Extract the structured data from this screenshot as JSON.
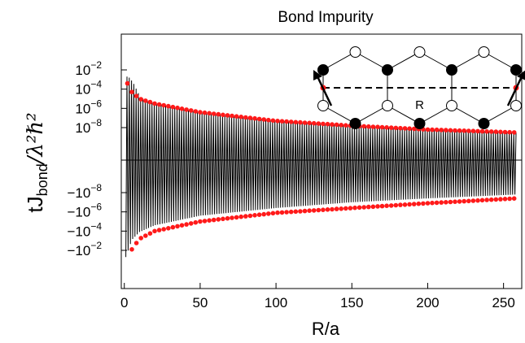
{
  "chart_data": {
    "type": "scatter",
    "title": "Bond Impurity",
    "xlabel": "R/a",
    "ylabel_text": "tJ",
    "ylabel_subscript": "bond",
    "ylabel_fraction": "/λ²ℏ²",
    "xlim": [
      -2,
      262
    ],
    "xticks": [
      "0",
      "50",
      "100",
      "150",
      "200",
      "250"
    ],
    "yscale": "symmetric-log",
    "yticks": [
      {
        "label": "10",
        "exp": "−2",
        "sign": 1,
        "decade": -2
      },
      {
        "label": "10",
        "exp": "−4",
        "sign": 1,
        "decade": -4
      },
      {
        "label": "10",
        "exp": "−6",
        "sign": 1,
        "decade": -6
      },
      {
        "label": "10",
        "exp": "−8",
        "sign": 1,
        "decade": -8
      },
      {
        "label": "−10",
        "exp": "−8",
        "sign": -1,
        "decade": -8
      },
      {
        "label": "−10",
        "exp": "−6",
        "sign": -1,
        "decade": -6
      },
      {
        "label": "−10",
        "exp": "−4",
        "sign": -1,
        "decade": -4
      },
      {
        "label": "−10",
        "exp": "−2",
        "sign": -1,
        "decade": -2
      }
    ],
    "zero_line": true,
    "series": [
      {
        "style": "black oscillating line",
        "color": "#000000",
        "envelope_positive": [
          [
            2,
            -2.7
          ],
          [
            5,
            -3.3
          ],
          [
            10,
            -4.9
          ],
          [
            20,
            -5.5
          ],
          [
            50,
            -6.5
          ],
          [
            100,
            -7.3
          ],
          [
            150,
            -7.8
          ],
          [
            200,
            -8.2
          ],
          [
            258,
            -8.5
          ]
        ],
        "envelope_negative": [
          [
            1,
            -1.3
          ],
          [
            5,
            -3.1
          ],
          [
            10,
            -3.9
          ],
          [
            20,
            -4.6
          ],
          [
            50,
            -5.6
          ],
          [
            100,
            -6.4
          ],
          [
            150,
            -7.0
          ],
          [
            200,
            -7.4
          ],
          [
            258,
            -7.8
          ]
        ]
      },
      {
        "style": "red dots",
        "color": "#ff1a1a",
        "upper_dots": [
          [
            2,
            -3.4
          ],
          [
            5,
            -4.3
          ],
          [
            10,
            -5.0
          ],
          [
            20,
            -5.5
          ],
          [
            50,
            -6.4
          ],
          [
            100,
            -7.3
          ],
          [
            150,
            -7.8
          ],
          [
            200,
            -8.2
          ],
          [
            258,
            -8.5
          ]
        ],
        "lower_dots": [
          [
            5,
            -2.1
          ],
          [
            10,
            -3.2
          ],
          [
            20,
            -4.0
          ],
          [
            50,
            -5.0
          ],
          [
            100,
            -5.9
          ],
          [
            150,
            -6.4
          ],
          [
            200,
            -6.9
          ],
          [
            258,
            -7.4
          ]
        ]
      }
    ],
    "inset": {
      "type": "honeycomb lattice diagram",
      "label": "R",
      "arrow_color": "#000000",
      "site_filled_color": "#000000",
      "impurity_color": "#ff1a1a"
    }
  }
}
